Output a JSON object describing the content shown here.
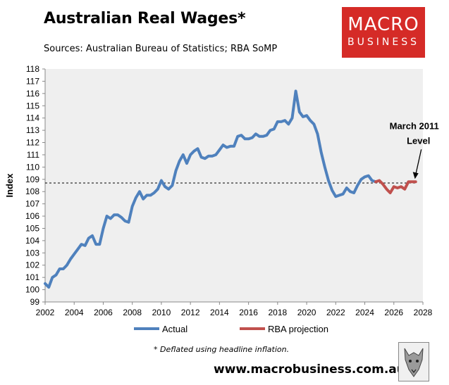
{
  "header": {
    "title": "Australian Real Wages*",
    "subtitle": "Sources: Australian Bureau of Statistics; RBA SoMP"
  },
  "logo": {
    "line1": "MACRO",
    "line2": "BUSINESS"
  },
  "footer": {
    "footnote": "* Deflated using headline inflation.",
    "website": "www.macrobusiness.com.au"
  },
  "colors": {
    "actual": "#4f81bd",
    "projection": "#c0504d",
    "plot_background": "#efefef",
    "brand": "#d52b27"
  },
  "chart_data": {
    "type": "line",
    "title": "Australian Real Wages*",
    "xlabel": "",
    "ylabel": "Index",
    "xlim": [
      2002,
      2028
    ],
    "ylim": [
      99,
      118
    ],
    "x_ticks": [
      2002,
      2004,
      2006,
      2008,
      2010,
      2012,
      2014,
      2016,
      2018,
      2020,
      2022,
      2024,
      2026,
      2028
    ],
    "y_ticks": [
      99,
      100,
      101,
      102,
      103,
      104,
      105,
      106,
      107,
      108,
      109,
      110,
      111,
      112,
      113,
      114,
      115,
      116,
      117,
      118
    ],
    "grid": false,
    "legend": "bottom",
    "reference_line": {
      "y": 108.7,
      "style": "dashed",
      "x_range": [
        2002,
        2027.5
      ]
    },
    "annotation": {
      "text_line1": "March 2011",
      "text_line2": "Level",
      "x": 2027.5,
      "y": 108.8
    },
    "series": [
      {
        "name": "Actual",
        "color": "#4f81bd",
        "x": [
          2002.0,
          2002.25,
          2002.5,
          2002.75,
          2003.0,
          2003.25,
          2003.5,
          2003.75,
          2004.0,
          2004.25,
          2004.5,
          2004.75,
          2005.0,
          2005.25,
          2005.5,
          2005.75,
          2006.0,
          2006.25,
          2006.5,
          2006.75,
          2007.0,
          2007.25,
          2007.5,
          2007.75,
          2008.0,
          2008.25,
          2008.5,
          2008.75,
          2009.0,
          2009.25,
          2009.5,
          2009.75,
          2010.0,
          2010.25,
          2010.5,
          2010.75,
          2011.0,
          2011.25,
          2011.5,
          2011.75,
          2012.0,
          2012.25,
          2012.5,
          2012.75,
          2013.0,
          2013.25,
          2013.5,
          2013.75,
          2014.0,
          2014.25,
          2014.5,
          2014.75,
          2015.0,
          2015.25,
          2015.5,
          2015.75,
          2016.0,
          2016.25,
          2016.5,
          2016.75,
          2017.0,
          2017.25,
          2017.5,
          2017.75,
          2018.0,
          2018.25,
          2018.5,
          2018.75,
          2019.0,
          2019.25,
          2019.5,
          2019.75,
          2020.0,
          2020.25,
          2020.5,
          2020.75,
          2021.0,
          2021.25,
          2021.5,
          2021.75,
          2022.0,
          2022.25,
          2022.5,
          2022.75,
          2023.0,
          2023.25,
          2023.5,
          2023.75,
          2024.0,
          2024.25,
          2024.5,
          2024.75
        ],
        "values": [
          100.5,
          100.2,
          101.0,
          101.2,
          101.7,
          101.7,
          102.0,
          102.5,
          102.9,
          103.3,
          103.7,
          103.6,
          104.2,
          104.4,
          103.7,
          103.7,
          105.0,
          106.0,
          105.8,
          106.1,
          106.1,
          105.9,
          105.6,
          105.5,
          106.8,
          107.5,
          108.0,
          107.4,
          107.7,
          107.7,
          107.9,
          108.2,
          108.9,
          108.4,
          108.2,
          108.5,
          109.7,
          110.5,
          111.0,
          110.3,
          111.0,
          111.3,
          111.5,
          110.8,
          110.7,
          110.9,
          110.9,
          111.0,
          111.4,
          111.8,
          111.6,
          111.7,
          111.7,
          112.5,
          112.6,
          112.3,
          112.3,
          112.4,
          112.7,
          112.5,
          112.5,
          112.6,
          113.0,
          113.1,
          113.7,
          113.7,
          113.8,
          113.5,
          114.0,
          116.2,
          114.5,
          114.1,
          114.2,
          113.8,
          113.5,
          112.7,
          111.2,
          110.0,
          108.9,
          108.1,
          107.6,
          107.7,
          107.8,
          108.3,
          108.0,
          107.9,
          108.5,
          109.0,
          109.2,
          109.3,
          108.9,
          108.8
        ]
      },
      {
        "name": "RBA projection",
        "color": "#c0504d",
        "x": [
          2024.75,
          2025.0,
          2025.25,
          2025.5,
          2025.75,
          2026.0,
          2026.25,
          2026.5,
          2026.75,
          2027.0,
          2027.25,
          2027.5
        ],
        "values": [
          108.8,
          108.9,
          108.6,
          108.2,
          107.9,
          108.4,
          108.3,
          108.4,
          108.2,
          108.8,
          108.8,
          108.8
        ]
      }
    ]
  }
}
